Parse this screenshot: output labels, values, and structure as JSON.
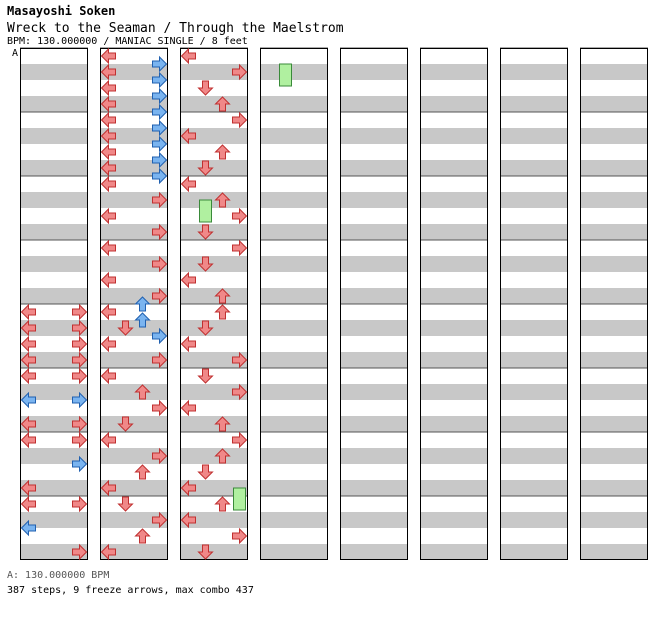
{
  "header": {
    "artist": "Masayoshi Soken",
    "title": "Wreck to the Seaman / Through the Maelstrom",
    "info": "BPM: 130.000000 / MANIAC SINGLE / 8 feet",
    "bpm_marker": "A"
  },
  "footer": {
    "bpm_line": "A: 130.000000 BPM",
    "summary": "387 steps, 9 freeze arrows, max combo 437"
  },
  "colors": {
    "quarter_note": "#f08888",
    "eighth_note": "#7ab4f0",
    "sixteenth_note": "#f0a0e0",
    "freeze": "#b0f0a0",
    "stripe": "#c8c8c8"
  },
  "chart_data": {
    "type": "step-chart",
    "columns": 8,
    "measures_per_column": 8,
    "lanes": [
      "left",
      "down",
      "up",
      "right"
    ],
    "notes": [
      {
        "m": 4,
        "b": 0,
        "l": 0
      },
      {
        "m": 4,
        "b": 0,
        "l": 3
      },
      {
        "m": 4,
        "b": 8,
        "l": 0
      },
      {
        "m": 4,
        "b": 8,
        "l": 3
      },
      {
        "m": 4,
        "b": 16,
        "l": 0
      },
      {
        "m": 4,
        "b": 16,
        "l": 3
      },
      {
        "m": 4,
        "b": 24,
        "l": 0
      },
      {
        "m": 4,
        "b": 24,
        "l": 3
      },
      {
        "m": 5,
        "b": 0,
        "l": 0
      },
      {
        "m": 5,
        "b": 0,
        "l": 3
      },
      {
        "m": 5,
        "b": 12,
        "l": 0
      },
      {
        "m": 5,
        "b": 12,
        "l": 3
      },
      {
        "m": 5,
        "b": 24,
        "l": 0
      },
      {
        "m": 5,
        "b": 24,
        "l": 3
      },
      {
        "m": 6,
        "b": 0,
        "l": 0
      },
      {
        "m": 6,
        "b": 0,
        "l": 3
      },
      {
        "m": 6,
        "b": 12,
        "l": 3
      },
      {
        "m": 6,
        "b": 24,
        "l": 0
      },
      {
        "m": 7,
        "b": 0,
        "l": 0
      },
      {
        "m": 7,
        "b": 0,
        "l": 3
      },
      {
        "m": 7,
        "b": 12,
        "l": 0
      },
      {
        "m": 7,
        "b": 24,
        "l": 3
      },
      {
        "m": 8,
        "b": 0,
        "l": 0
      },
      {
        "m": 8,
        "b": 4,
        "l": 3
      },
      {
        "m": 8,
        "b": 8,
        "l": 0
      },
      {
        "m": 8,
        "b": 12,
        "l": 3
      },
      {
        "m": 8,
        "b": 16,
        "l": 0
      },
      {
        "m": 8,
        "b": 20,
        "l": 3
      },
      {
        "m": 8,
        "b": 24,
        "l": 0
      },
      {
        "m": 8,
        "b": 28,
        "l": 3
      },
      {
        "m": 9,
        "b": 0,
        "l": 0
      },
      {
        "m": 9,
        "b": 4,
        "l": 3
      },
      {
        "m": 9,
        "b": 8,
        "l": 0
      },
      {
        "m": 9,
        "b": 12,
        "l": 3
      },
      {
        "m": 9,
        "b": 16,
        "l": 0
      },
      {
        "m": 9,
        "b": 20,
        "l": 3
      },
      {
        "m": 9,
        "b": 24,
        "l": 0
      },
      {
        "m": 9,
        "b": 28,
        "l": 3
      },
      {
        "m": 10,
        "b": 0,
        "l": 0
      },
      {
        "m": 10,
        "b": 8,
        "l": 3
      },
      {
        "m": 10,
        "b": 16,
        "l": 0
      },
      {
        "m": 10,
        "b": 24,
        "l": 3
      },
      {
        "m": 11,
        "b": 0,
        "l": 0
      },
      {
        "m": 11,
        "b": 8,
        "l": 3
      },
      {
        "m": 11,
        "b": 16,
        "l": 0
      },
      {
        "m": 11,
        "b": 24,
        "l": 3
      },
      {
        "m": 11,
        "b": 28,
        "l": 2
      },
      {
        "m": 12,
        "b": 0,
        "l": 0
      },
      {
        "m": 12,
        "b": 4,
        "l": 2
      },
      {
        "m": 12,
        "b": 8,
        "l": 1
      },
      {
        "m": 12,
        "b": 12,
        "l": 3
      },
      {
        "m": 12,
        "b": 16,
        "l": 0
      },
      {
        "m": 12,
        "b": 24,
        "l": 3
      },
      {
        "m": 13,
        "b": 0,
        "l": 0
      },
      {
        "m": 13,
        "b": 8,
        "l": 2
      },
      {
        "m": 13,
        "b": 16,
        "l": 3
      },
      {
        "m": 13,
        "b": 24,
        "l": 1
      },
      {
        "m": 14,
        "b": 0,
        "l": 0
      },
      {
        "m": 14,
        "b": 8,
        "l": 3
      },
      {
        "m": 14,
        "b": 16,
        "l": 2
      },
      {
        "m": 14,
        "b": 24,
        "l": 0
      },
      {
        "m": 15,
        "b": 0,
        "l": 1
      },
      {
        "m": 15,
        "b": 8,
        "l": 3
      },
      {
        "m": 15,
        "b": 16,
        "l": 2
      },
      {
        "m": 15,
        "b": 24,
        "l": 0
      },
      {
        "m": 16,
        "b": 0,
        "l": 0
      },
      {
        "m": 16,
        "b": 8,
        "l": 3
      },
      {
        "m": 16,
        "b": 16,
        "l": 1
      },
      {
        "m": 16,
        "b": 24,
        "l": 2
      },
      {
        "m": 17,
        "b": 0,
        "l": 3
      },
      {
        "m": 17,
        "b": 8,
        "l": 0
      },
      {
        "m": 17,
        "b": 16,
        "l": 2
      },
      {
        "m": 17,
        "b": 24,
        "l": 1
      },
      {
        "m": 18,
        "b": 0,
        "l": 0
      },
      {
        "m": 18,
        "b": 8,
        "l": 2
      },
      {
        "m": 18,
        "b": 16,
        "l": 3
      },
      {
        "m": 18,
        "b": 24,
        "l": 1
      },
      {
        "m": 19,
        "b": 0,
        "l": 3
      },
      {
        "m": 19,
        "b": 8,
        "l": 1
      },
      {
        "m": 19,
        "b": 16,
        "l": 0
      },
      {
        "m": 19,
        "b": 24,
        "l": 2
      },
      {
        "m": 20,
        "b": 0,
        "l": 2
      },
      {
        "m": 20,
        "b": 8,
        "l": 1
      },
      {
        "m": 20,
        "b": 16,
        "l": 0
      },
      {
        "m": 20,
        "b": 24,
        "l": 3
      },
      {
        "m": 21,
        "b": 0,
        "l": 1
      },
      {
        "m": 21,
        "b": 8,
        "l": 3
      },
      {
        "m": 21,
        "b": 16,
        "l": 0
      },
      {
        "m": 21,
        "b": 24,
        "l": 2
      },
      {
        "m": 22,
        "b": 0,
        "l": 3
      },
      {
        "m": 22,
        "b": 8,
        "l": 2
      },
      {
        "m": 22,
        "b": 16,
        "l": 1
      },
      {
        "m": 22,
        "b": 24,
        "l": 0
      },
      {
        "m": 23,
        "b": 0,
        "l": 2
      },
      {
        "m": 23,
        "b": 8,
        "l": 0
      },
      {
        "m": 23,
        "b": 16,
        "l": 3
      },
      {
        "m": 23,
        "b": 24,
        "l": 1
      }
    ],
    "freezes": [
      {
        "m": 18,
        "b": 8,
        "l": 1,
        "len": 8
      },
      {
        "m": 22,
        "b": 24,
        "l": 3,
        "len": 8
      },
      {
        "m": 24,
        "b": 4,
        "l": 1,
        "len": 8
      }
    ]
  }
}
